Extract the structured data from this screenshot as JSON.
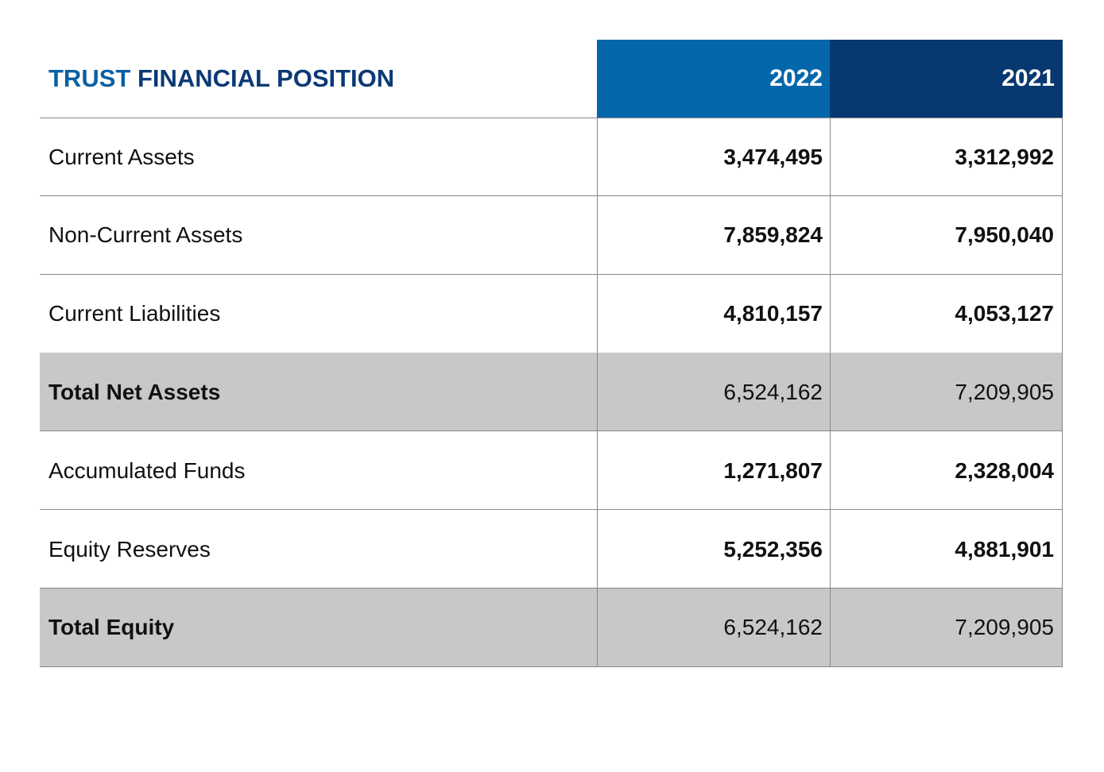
{
  "header": {
    "title_parts": [
      "TRUST",
      "FINANCIAL POSITION"
    ],
    "columns": [
      "2022",
      "2021"
    ]
  },
  "table": {
    "rows": [
      [
        "Current Assets",
        "3,474,495",
        "3,312,992"
      ],
      [
        "Non-Current Assets",
        "7,859,824",
        "7,950,040"
      ],
      [
        "Current Liabilities",
        "4,810,157",
        "4,053,127"
      ],
      [
        "Total Net Assets",
        "6,524,162",
        "7,209,905"
      ],
      [
        "Accumulated Funds",
        "1,271,807",
        "2,328,004"
      ],
      [
        "Equity Reserves",
        "5,252,356",
        "4,881,901"
      ],
      [
        "Total Equity",
        "6,524,162",
        "7,209,905"
      ]
    ]
  }
}
